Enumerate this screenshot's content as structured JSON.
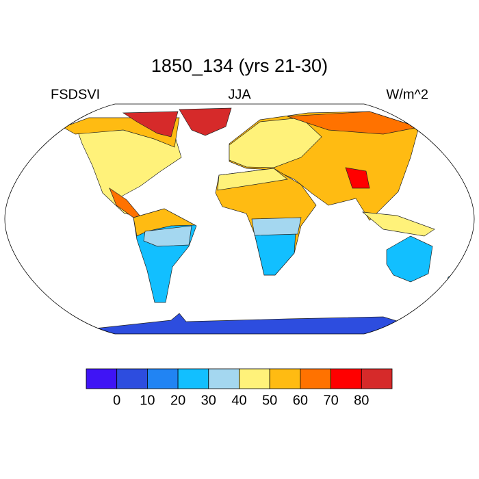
{
  "header": {
    "title": "1850_134 (yrs 21-30)",
    "left": "FSDSVI",
    "center": "JJA",
    "right": "W/m^2"
  },
  "colorbar": {
    "colors": [
      "#3f14f5",
      "#2d4ddf",
      "#2184f3",
      "#12bfff",
      "#a4d7f0",
      "#fff27a",
      "#ffbb12",
      "#ff7200",
      "#ff0000",
      "#d62a2a"
    ],
    "levels": [
      0,
      10,
      20,
      30,
      40,
      50,
      60,
      70,
      80
    ]
  }
}
